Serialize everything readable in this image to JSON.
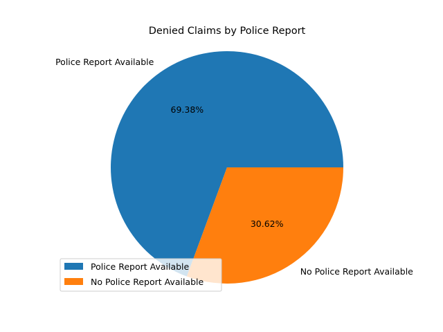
{
  "chart_data": {
    "type": "pie",
    "title": "Denied Claims by Police Report",
    "slices": [
      {
        "label": "Police Report Available",
        "value": 69.38,
        "pct_label": "69.38%",
        "color": "#1f77b4"
      },
      {
        "label": "No Police Report Available",
        "value": 30.62,
        "pct_label": "30.62%",
        "color": "#ff7f0e"
      }
    ],
    "legend": {
      "placement": "lower-left",
      "entries": [
        "Police Report Available",
        "No Police Report Available"
      ]
    }
  }
}
